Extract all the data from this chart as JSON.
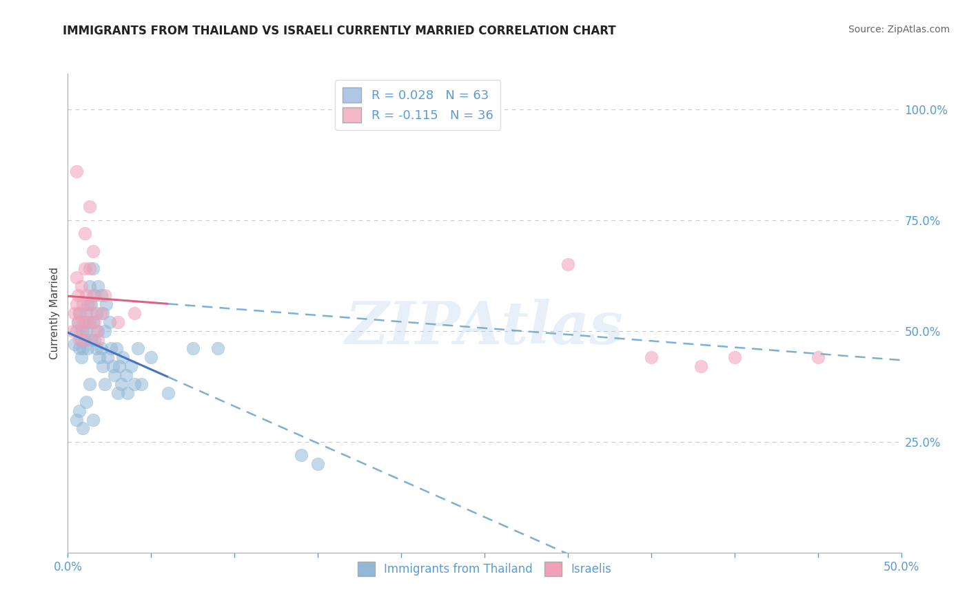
{
  "title": "IMMIGRANTS FROM THAILAND VS ISRAELI CURRENTLY MARRIED CORRELATION CHART",
  "source": "Source: ZipAtlas.com",
  "ylabel": "Currently Married",
  "xlim": [
    0.0,
    0.5
  ],
  "ylim": [
    0.0,
    1.08
  ],
  "legend_entries": [
    {
      "label": "R = 0.028   N = 63",
      "color": "#aec6e8"
    },
    {
      "label": "R = -0.115   N = 36",
      "color": "#f4b8c8"
    }
  ],
  "series_blue": {
    "color": "#92b8d8",
    "edge_color": "#6496c8",
    "R": 0.028,
    "N": 63,
    "points": [
      [
        0.004,
        0.47
      ],
      [
        0.005,
        0.5
      ],
      [
        0.006,
        0.52
      ],
      [
        0.007,
        0.46
      ],
      [
        0.007,
        0.54
      ],
      [
        0.008,
        0.48
      ],
      [
        0.008,
        0.44
      ],
      [
        0.009,
        0.5
      ],
      [
        0.009,
        0.46
      ],
      [
        0.01,
        0.52
      ],
      [
        0.01,
        0.48
      ],
      [
        0.011,
        0.54
      ],
      [
        0.011,
        0.5
      ],
      [
        0.012,
        0.56
      ],
      [
        0.012,
        0.46
      ],
      [
        0.013,
        0.52
      ],
      [
        0.013,
        0.6
      ],
      [
        0.014,
        0.56
      ],
      [
        0.014,
        0.48
      ],
      [
        0.015,
        0.64
      ],
      [
        0.015,
        0.52
      ],
      [
        0.016,
        0.58
      ],
      [
        0.016,
        0.48
      ],
      [
        0.017,
        0.54
      ],
      [
        0.017,
        0.46
      ],
      [
        0.018,
        0.6
      ],
      [
        0.018,
        0.5
      ],
      [
        0.019,
        0.44
      ],
      [
        0.02,
        0.58
      ],
      [
        0.02,
        0.46
      ],
      [
        0.021,
        0.54
      ],
      [
        0.021,
        0.42
      ],
      [
        0.022,
        0.5
      ],
      [
        0.022,
        0.38
      ],
      [
        0.023,
        0.56
      ],
      [
        0.024,
        0.44
      ],
      [
        0.025,
        0.52
      ],
      [
        0.026,
        0.46
      ],
      [
        0.027,
        0.42
      ],
      [
        0.028,
        0.4
      ],
      [
        0.029,
        0.46
      ],
      [
        0.03,
        0.36
      ],
      [
        0.031,
        0.42
      ],
      [
        0.032,
        0.38
      ],
      [
        0.033,
        0.44
      ],
      [
        0.035,
        0.4
      ],
      [
        0.036,
        0.36
      ],
      [
        0.038,
        0.42
      ],
      [
        0.04,
        0.38
      ],
      [
        0.042,
        0.46
      ],
      [
        0.044,
        0.38
      ],
      [
        0.05,
        0.44
      ],
      [
        0.005,
        0.3
      ],
      [
        0.007,
        0.32
      ],
      [
        0.009,
        0.28
      ],
      [
        0.011,
        0.34
      ],
      [
        0.013,
        0.38
      ],
      [
        0.015,
        0.3
      ],
      [
        0.06,
        0.36
      ],
      [
        0.075,
        0.46
      ],
      [
        0.09,
        0.46
      ],
      [
        0.14,
        0.22
      ],
      [
        0.15,
        0.2
      ]
    ]
  },
  "series_pink": {
    "color": "#f0a0b8",
    "edge_color": "#e06080",
    "R": -0.115,
    "N": 36,
    "points": [
      [
        0.003,
        0.5
      ],
      [
        0.004,
        0.54
      ],
      [
        0.005,
        0.56
      ],
      [
        0.005,
        0.62
      ],
      [
        0.006,
        0.52
      ],
      [
        0.006,
        0.58
      ],
      [
        0.007,
        0.48
      ],
      [
        0.007,
        0.54
      ],
      [
        0.008,
        0.5
      ],
      [
        0.008,
        0.6
      ],
      [
        0.009,
        0.52
      ],
      [
        0.009,
        0.56
      ],
      [
        0.01,
        0.64
      ],
      [
        0.01,
        0.48
      ],
      [
        0.011,
        0.58
      ],
      [
        0.012,
        0.52
      ],
      [
        0.013,
        0.56
      ],
      [
        0.013,
        0.64
      ],
      [
        0.014,
        0.54
      ],
      [
        0.015,
        0.58
      ],
      [
        0.016,
        0.52
      ],
      [
        0.017,
        0.5
      ],
      [
        0.018,
        0.48
      ],
      [
        0.02,
        0.54
      ],
      [
        0.022,
        0.58
      ],
      [
        0.03,
        0.52
      ],
      [
        0.04,
        0.54
      ],
      [
        0.005,
        0.86
      ],
      [
        0.01,
        0.72
      ],
      [
        0.013,
        0.78
      ],
      [
        0.015,
        0.68
      ],
      [
        0.3,
        0.65
      ],
      [
        0.35,
        0.44
      ],
      [
        0.38,
        0.42
      ],
      [
        0.4,
        0.44
      ],
      [
        0.45,
        0.44
      ]
    ]
  },
  "watermark": "ZIPAtlas",
  "background_color": "#ffffff",
  "grid_color": "#c8c8c8",
  "title_color": "#222222",
  "tick_color": "#5b9bd5"
}
